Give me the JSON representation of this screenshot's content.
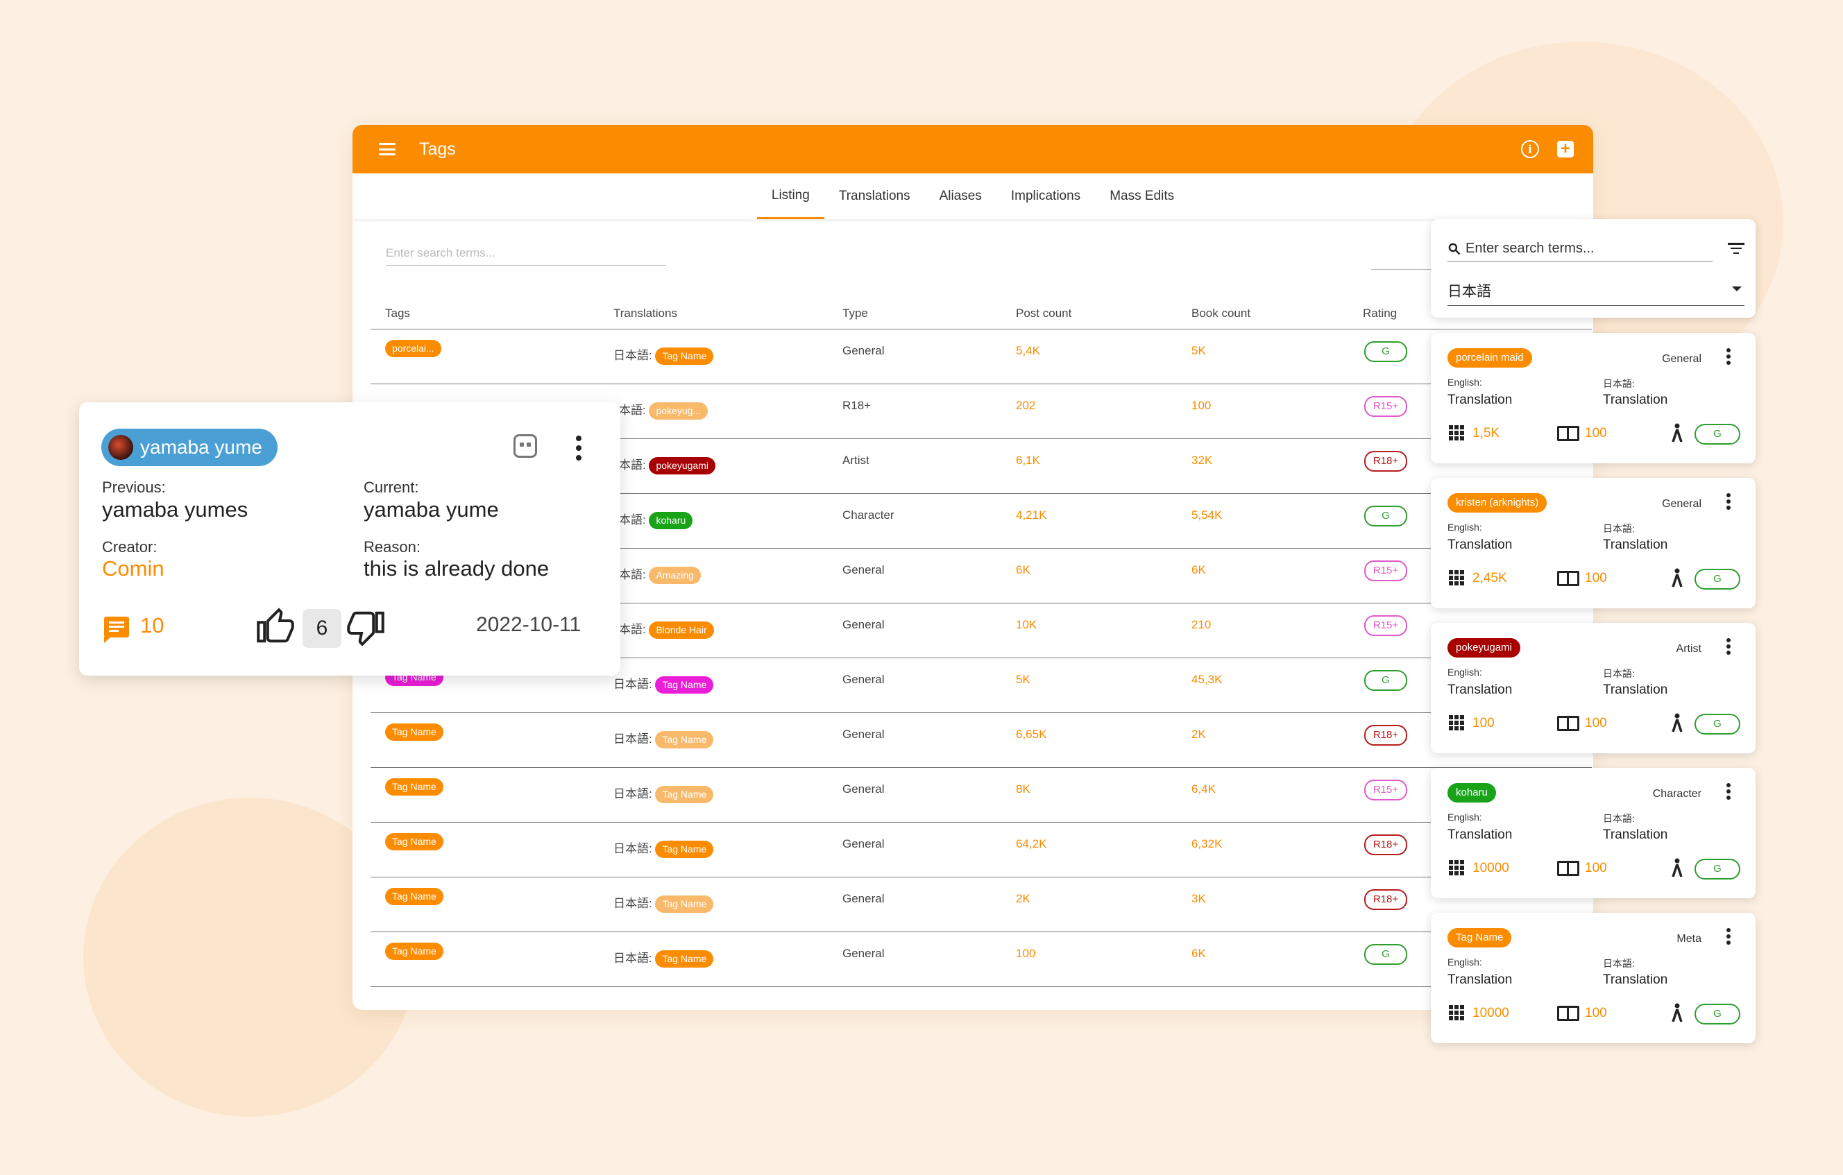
{
  "app": {
    "title": "Tags"
  },
  "tabs": [
    "Listing",
    "Translations",
    "Aliases",
    "Implications",
    "Mass Edits"
  ],
  "search": {
    "placeholder": "Enter search terms..."
  },
  "table": {
    "headers": [
      "Tags",
      "Translations",
      "Type",
      "Post count",
      "Book count",
      "Rating"
    ],
    "rows": [
      {
        "tag": "porcelai...",
        "tag_color": "#fb8c00",
        "lang": "日本語:",
        "translation": "Tag Name",
        "trans_color": "#fb8c00",
        "type": "General",
        "posts": "5,4K",
        "books": "5K",
        "rating": "G",
        "rating_class": "G"
      },
      {
        "tag": "",
        "tag_color": "#fb8c00",
        "lang": "本語:",
        "translation": "pokeyug...",
        "trans_color": "#f9b96a",
        "type": "R18+",
        "posts": "202",
        "books": "100",
        "rating": "R15+",
        "rating_class": "R15"
      },
      {
        "tag": "",
        "tag_color": "#fb8c00",
        "lang": "本語:",
        "translation": "pokeyugami",
        "trans_color": "#a80000",
        "type": "Artist",
        "posts": "6,1K",
        "books": "32K",
        "rating": "R18+",
        "rating_class": "R18"
      },
      {
        "tag": "",
        "tag_color": "#fb8c00",
        "lang": "本語:",
        "translation": "koharu",
        "trans_color": "#19a319",
        "type": "Character",
        "posts": "4,21K",
        "books": "5,54K",
        "rating": "G",
        "rating_class": "G"
      },
      {
        "tag": "",
        "tag_color": "#fb8c00",
        "lang": "本語:",
        "translation": "Amazing",
        "trans_color": "#f9b96a",
        "type": "General",
        "posts": "6K",
        "books": "6K",
        "rating": "R15+",
        "rating_class": "R15"
      },
      {
        "tag": "",
        "tag_color": "#fb8c00",
        "lang": "本語:",
        "translation": "Blonde Hair",
        "trans_color": "#fb8c00",
        "type": "General",
        "posts": "10K",
        "books": "210",
        "rating": "R15+",
        "rating_class": "R15"
      },
      {
        "tag": "Tag Name",
        "tag_color": "#e91ed6",
        "lang": "日本語:",
        "translation": "Tag Name",
        "trans_color": "#e91ed6",
        "type": "General",
        "posts": "5K",
        "books": "45,3K",
        "rating": "G",
        "rating_class": "G"
      },
      {
        "tag": "Tag Name",
        "tag_color": "#fb8c00",
        "lang": "日本語:",
        "translation": "Tag Name",
        "trans_color": "#f9b96a",
        "type": "General",
        "posts": "6,65K",
        "books": "2K",
        "rating": "R18+",
        "rating_class": "R18"
      },
      {
        "tag": "Tag Name",
        "tag_color": "#fb8c00",
        "lang": "日本語:",
        "translation": "Tag Name",
        "trans_color": "#f9b96a",
        "type": "General",
        "posts": "8K",
        "books": "6,4K",
        "rating": "R15+",
        "rating_class": "R15"
      },
      {
        "tag": "Tag Name",
        "tag_color": "#fb8c00",
        "lang": "日本語:",
        "translation": "Tag Name",
        "trans_color": "#fb8c00",
        "type": "General",
        "posts": "64,2K",
        "books": "6,32K",
        "rating": "R18+",
        "rating_class": "R18"
      },
      {
        "tag": "Tag Name",
        "tag_color": "#fb8c00",
        "lang": "日本語:",
        "translation": "Tag Name",
        "trans_color": "#f9b96a",
        "type": "General",
        "posts": "2K",
        "books": "3K",
        "rating": "R18+",
        "rating_class": "R18"
      },
      {
        "tag": "Tag Name",
        "tag_color": "#fb8c00",
        "lang": "日本語:",
        "translation": "Tag Name",
        "trans_color": "#fb8c00",
        "type": "General",
        "posts": "100",
        "books": "6K",
        "rating": "G",
        "rating_class": "G"
      }
    ]
  },
  "edit_card": {
    "user": "yamaba yume",
    "previous_label": "Previous:",
    "previous": "yamaba yumes",
    "current_label": "Current:",
    "current": "yamaba yume",
    "creator_label": "Creator:",
    "creator": "Comin",
    "reason_label": "Reason:",
    "reason": "this is already done",
    "comments": "10",
    "votes": "6",
    "date": "2022-10-11"
  },
  "side_panel": {
    "search_placeholder": "Enter search terms...",
    "language": "日本語",
    "english_label": "English:",
    "japanese_label": "日本語:",
    "translation": "Translation",
    "cards": [
      {
        "tag": "porcelain maid",
        "tag_color": "#fb8c00",
        "category": "General",
        "posts": "1,5K",
        "books": "100",
        "rating": "G"
      },
      {
        "tag": "kristen (arknights)",
        "tag_color": "#fb8c00",
        "category": "General",
        "posts": "2,45K",
        "books": "100",
        "rating": "G"
      },
      {
        "tag": "pokeyugami",
        "tag_color": "#a80000",
        "category": "Artist",
        "posts": "100",
        "books": "100",
        "rating": "G"
      },
      {
        "tag": "koharu",
        "tag_color": "#19a319",
        "category": "Character",
        "posts": "10000",
        "books": "100",
        "rating": "G"
      },
      {
        "tag": "Tag Name",
        "tag_color": "#fb8c00",
        "category": "Meta",
        "posts": "10000",
        "books": "100",
        "rating": "G"
      }
    ]
  },
  "colors": {
    "accent": "#fb8c00",
    "background": "#fdf0e2",
    "user_chip": "#4a9fd4"
  }
}
